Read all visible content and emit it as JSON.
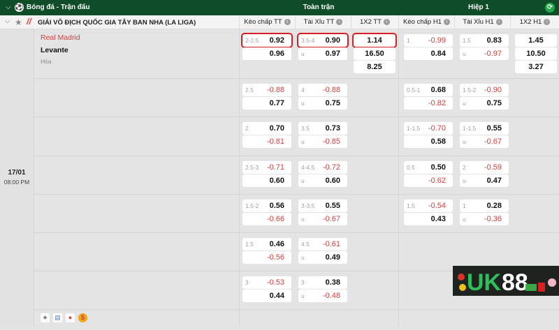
{
  "header": {
    "title": "Bóng đá - Trận đấu",
    "section_full": "Toàn trận",
    "section_h1": "Hiệp 1",
    "refresh_icon": "refresh-icon"
  },
  "league": {
    "name": "GIẢI VÔ ĐỊCH QUỐC GIA TÂY BAN NHA (LA LIGA)"
  },
  "columns": [
    "Kèo chấp TT",
    "Tài Xỉu TT",
    "1X2 TT",
    "Kèo chấp H1",
    "Tài Xỉu H1",
    "1X2 H1"
  ],
  "match": {
    "home": "Real Madrid",
    "away": "Levante",
    "draw": "Hòa",
    "date": "17/01",
    "time": "08:00 PM"
  },
  "colors": {
    "header": "#0e4d27",
    "negative": "#e03a3a",
    "highlight": "#d61f26",
    "home_team": "#d94040"
  },
  "rows": [
    {
      "kct": [
        "2-2.5",
        "0.92",
        "",
        "0.96"
      ],
      "txt": [
        "3.5-4",
        "0.90",
        "u",
        "0.97"
      ],
      "x12": [
        "1.14",
        "16.50",
        "8.25"
      ],
      "kch1": [
        "1",
        "-0.99",
        "",
        "0.84"
      ],
      "txh1": [
        "1.5",
        "0.83",
        "u",
        "-0.97"
      ],
      "x12h1": [
        "1.45",
        "10.50",
        "3.27"
      ]
    },
    {
      "kct": [
        "2.5",
        "-0.88",
        "",
        "0.77"
      ],
      "txt": [
        "4",
        "-0.88",
        "u",
        "0.75"
      ],
      "kch1": [
        "0.5-1",
        "0.68",
        "",
        "-0.82"
      ],
      "txh1": [
        "1.5-2",
        "-0.90",
        "u",
        "0.75"
      ]
    },
    {
      "kct": [
        "2",
        "0.70",
        "",
        "-0.81"
      ],
      "txt": [
        "3.5",
        "0.73",
        "u",
        "-0.85"
      ],
      "kch1": [
        "1-1.5",
        "-0.70",
        "",
        "0.58"
      ],
      "txh1": [
        "1-1.5",
        "0.55",
        "u",
        "-0.67"
      ]
    },
    {
      "kct": [
        "2.5-3",
        "-0.71",
        "",
        "0.60"
      ],
      "txt": [
        "4-4.5",
        "-0.72",
        "u",
        "0.60"
      ],
      "kch1": [
        "0.5",
        "0.50",
        "",
        "-0.62"
      ],
      "txh1": [
        "2",
        "-0.59",
        "u",
        "0.47"
      ]
    },
    {
      "kct": [
        "1.5-2",
        "0.56",
        "",
        "-0.66"
      ],
      "txt": [
        "3-3.5",
        "0.55",
        "u",
        "-0.67"
      ],
      "kch1": [
        "1.5",
        "-0.54",
        "",
        "0.43"
      ],
      "txh1": [
        "1",
        "0.28",
        "u",
        "-0.36"
      ]
    },
    {
      "kct": [
        "1.5",
        "0.46",
        "",
        "-0.56"
      ],
      "txt": [
        "4.5",
        "-0.61",
        "u",
        "0.49"
      ]
    },
    {
      "kct": [
        "3",
        "-0.53",
        "",
        "0.44"
      ],
      "txt": [
        "3",
        "0.38",
        "u",
        "-0.48"
      ]
    }
  ],
  "logo": {
    "text": "UK88"
  }
}
